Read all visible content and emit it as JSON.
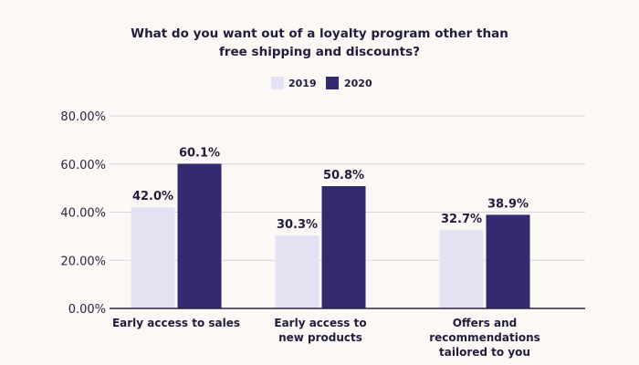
{
  "colors": {
    "background": "#fbf8f5",
    "text": "#221c3d",
    "axis_text": "#2a2540",
    "grid": "#d9d5dd",
    "axis_line": "#2a2540",
    "series_2019": "#e4e1f2",
    "series_2020": "#33296f"
  },
  "chart_data": {
    "type": "bar",
    "title": "What do you want out of a loyalty program other than free shipping and discounts?",
    "title_lines": [
      "What do you want out of a loyalty program other than",
      "free shipping and discounts?"
    ],
    "xlabel": "",
    "ylabel": "",
    "categories": [
      "Early access to sales",
      "Early access to new products",
      "Offers and recommendations tailored to you"
    ],
    "category_lines": [
      [
        "Early access to sales"
      ],
      [
        "Early access to",
        "new products"
      ],
      [
        "Offers and",
        "recommendations",
        "tailored to you"
      ]
    ],
    "series": [
      {
        "name": "2019",
        "values": [
          42.0,
          30.3,
          32.7
        ],
        "labels": [
          "42.0%",
          "30.3%",
          "32.7%"
        ],
        "color": "#e4e1f2"
      },
      {
        "name": "2020",
        "values": [
          60.1,
          50.8,
          38.9
        ],
        "labels": [
          "60.1%",
          "50.8%",
          "38.9%"
        ],
        "color": "#33296f"
      }
    ],
    "ylim": [
      0,
      80
    ],
    "yticks": [
      0,
      20,
      40,
      60,
      80
    ],
    "ytick_labels": [
      "0.00%",
      "20.00%",
      "40.00%",
      "60.00%",
      "80.00%"
    ],
    "grid": true,
    "legend_position": "top-center"
  }
}
